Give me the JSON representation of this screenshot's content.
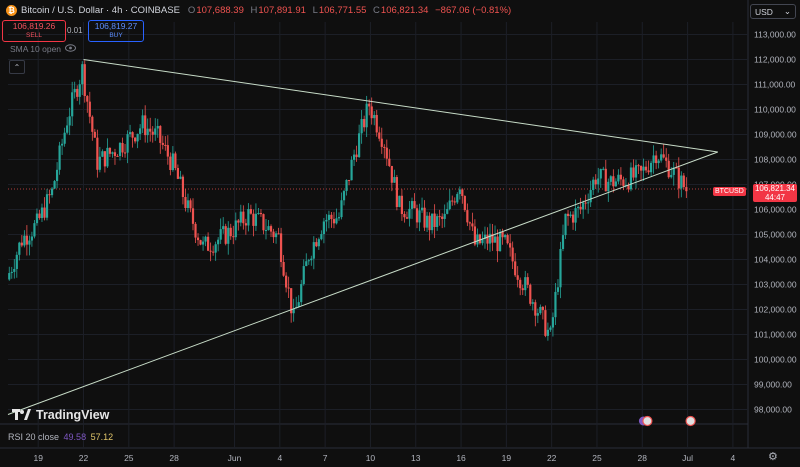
{
  "header": {
    "symbol_title": "Bitcoin / U.S. Dollar · 4h · COINBASE",
    "coin_glyph": "₿",
    "ohlc": [
      {
        "label": "O",
        "value": "107,688.39"
      },
      {
        "label": "H",
        "value": "107,891.91"
      },
      {
        "label": "L",
        "value": "106,771.55"
      },
      {
        "label": "C",
        "value": "106,821.34"
      }
    ],
    "change": "−867.06 (−0.81%)"
  },
  "trade": {
    "sell_price": "106,819.26",
    "sell_label": "SELL",
    "spread": "0.01",
    "buy_price": "106,819.27",
    "buy_label": "BUY"
  },
  "indicator": {
    "sma_label": "SMA 10 open"
  },
  "currency": {
    "selected": "USD"
  },
  "price_axis": {
    "ticks": [
      "113,000.00",
      "112,000.00",
      "111,000.00",
      "110,000.00",
      "109,000.00",
      "108,000.00",
      "107,000.00",
      "106,000.00",
      "105,000.00",
      "104,000.00",
      "103,000.00",
      "102,000.00",
      "101,000.00",
      "100,000.00",
      "99,000.00",
      "98,000.00"
    ],
    "last_symbol": "BTCUSD",
    "last_price": "106,821.34",
    "countdown": "44:47"
  },
  "time_axis": {
    "labels": [
      "19",
      "22",
      "25",
      "28",
      "Jun",
      "4",
      "7",
      "10",
      "13",
      "16",
      "19",
      "22",
      "25",
      "28",
      "Jul",
      "4"
    ]
  },
  "rsi": {
    "label": "RSI 20 close",
    "value1": "49.58",
    "value2": "57.12"
  },
  "branding": {
    "logo_text": "TradingView"
  },
  "colors": {
    "up": "#26a69a",
    "down": "#ef5350",
    "trendline": "#c8dcc8",
    "background": "#0f0f0f"
  },
  "chart_data": {
    "type": "candlestick",
    "interval": "4h",
    "ylim": [
      97500,
      113500
    ],
    "x_start": "2025-05-17",
    "x_end": "2025-07-05",
    "daily_close": [
      [
        "2025-05-17",
        103200
      ],
      [
        "2025-05-18",
        104800
      ],
      [
        "2025-05-19",
        105400
      ],
      [
        "2025-05-20",
        106700
      ],
      [
        "2025-05-21",
        109600
      ],
      [
        "2025-05-22",
        111600
      ],
      [
        "2025-05-23",
        107900
      ],
      [
        "2025-05-24",
        108300
      ],
      [
        "2025-05-25",
        108800
      ],
      [
        "2025-05-26",
        109400
      ],
      [
        "2025-05-27",
        108900
      ],
      [
        "2025-05-28",
        107800
      ],
      [
        "2025-05-29",
        106000
      ],
      [
        "2025-05-30",
        104500
      ],
      [
        "2025-05-31",
        104800
      ],
      [
        "2025-06-01",
        105200
      ],
      [
        "2025-06-02",
        105800
      ],
      [
        "2025-06-03",
        105400
      ],
      [
        "2025-06-04",
        104900
      ],
      [
        "2025-06-05",
        101600
      ],
      [
        "2025-06-06",
        104200
      ],
      [
        "2025-06-07",
        105600
      ],
      [
        "2025-06-08",
        105700
      ],
      [
        "2025-06-09",
        108200
      ],
      [
        "2025-06-10",
        110200
      ],
      [
        "2025-06-11",
        108700
      ],
      [
        "2025-06-12",
        106100
      ],
      [
        "2025-06-13",
        105900
      ],
      [
        "2025-06-14",
        105400
      ],
      [
        "2025-06-15",
        105600
      ],
      [
        "2025-06-16",
        107100
      ],
      [
        "2025-06-17",
        104600
      ],
      [
        "2025-06-18",
        104800
      ],
      [
        "2025-06-19",
        104600
      ],
      [
        "2025-06-20",
        103300
      ],
      [
        "2025-06-21",
        102200
      ],
      [
        "2025-06-22",
        100900
      ],
      [
        "2025-06-23",
        105600
      ],
      [
        "2025-06-24",
        106000
      ],
      [
        "2025-06-25",
        107300
      ],
      [
        "2025-06-26",
        107100
      ],
      [
        "2025-06-27",
        107200
      ],
      [
        "2025-06-28",
        107400
      ],
      [
        "2025-06-29",
        108300
      ],
      [
        "2025-06-30",
        107600
      ],
      [
        "2025-07-01",
        106800
      ]
    ],
    "trendlines": [
      {
        "name": "resistance",
        "from": [
          "2025-05-22",
          112000
        ],
        "to": [
          "2025-07-03",
          108300
        ]
      },
      {
        "name": "support",
        "from": [
          "2025-05-17",
          97800
        ],
        "to": [
          "2025-07-03",
          108300
        ]
      }
    ]
  }
}
